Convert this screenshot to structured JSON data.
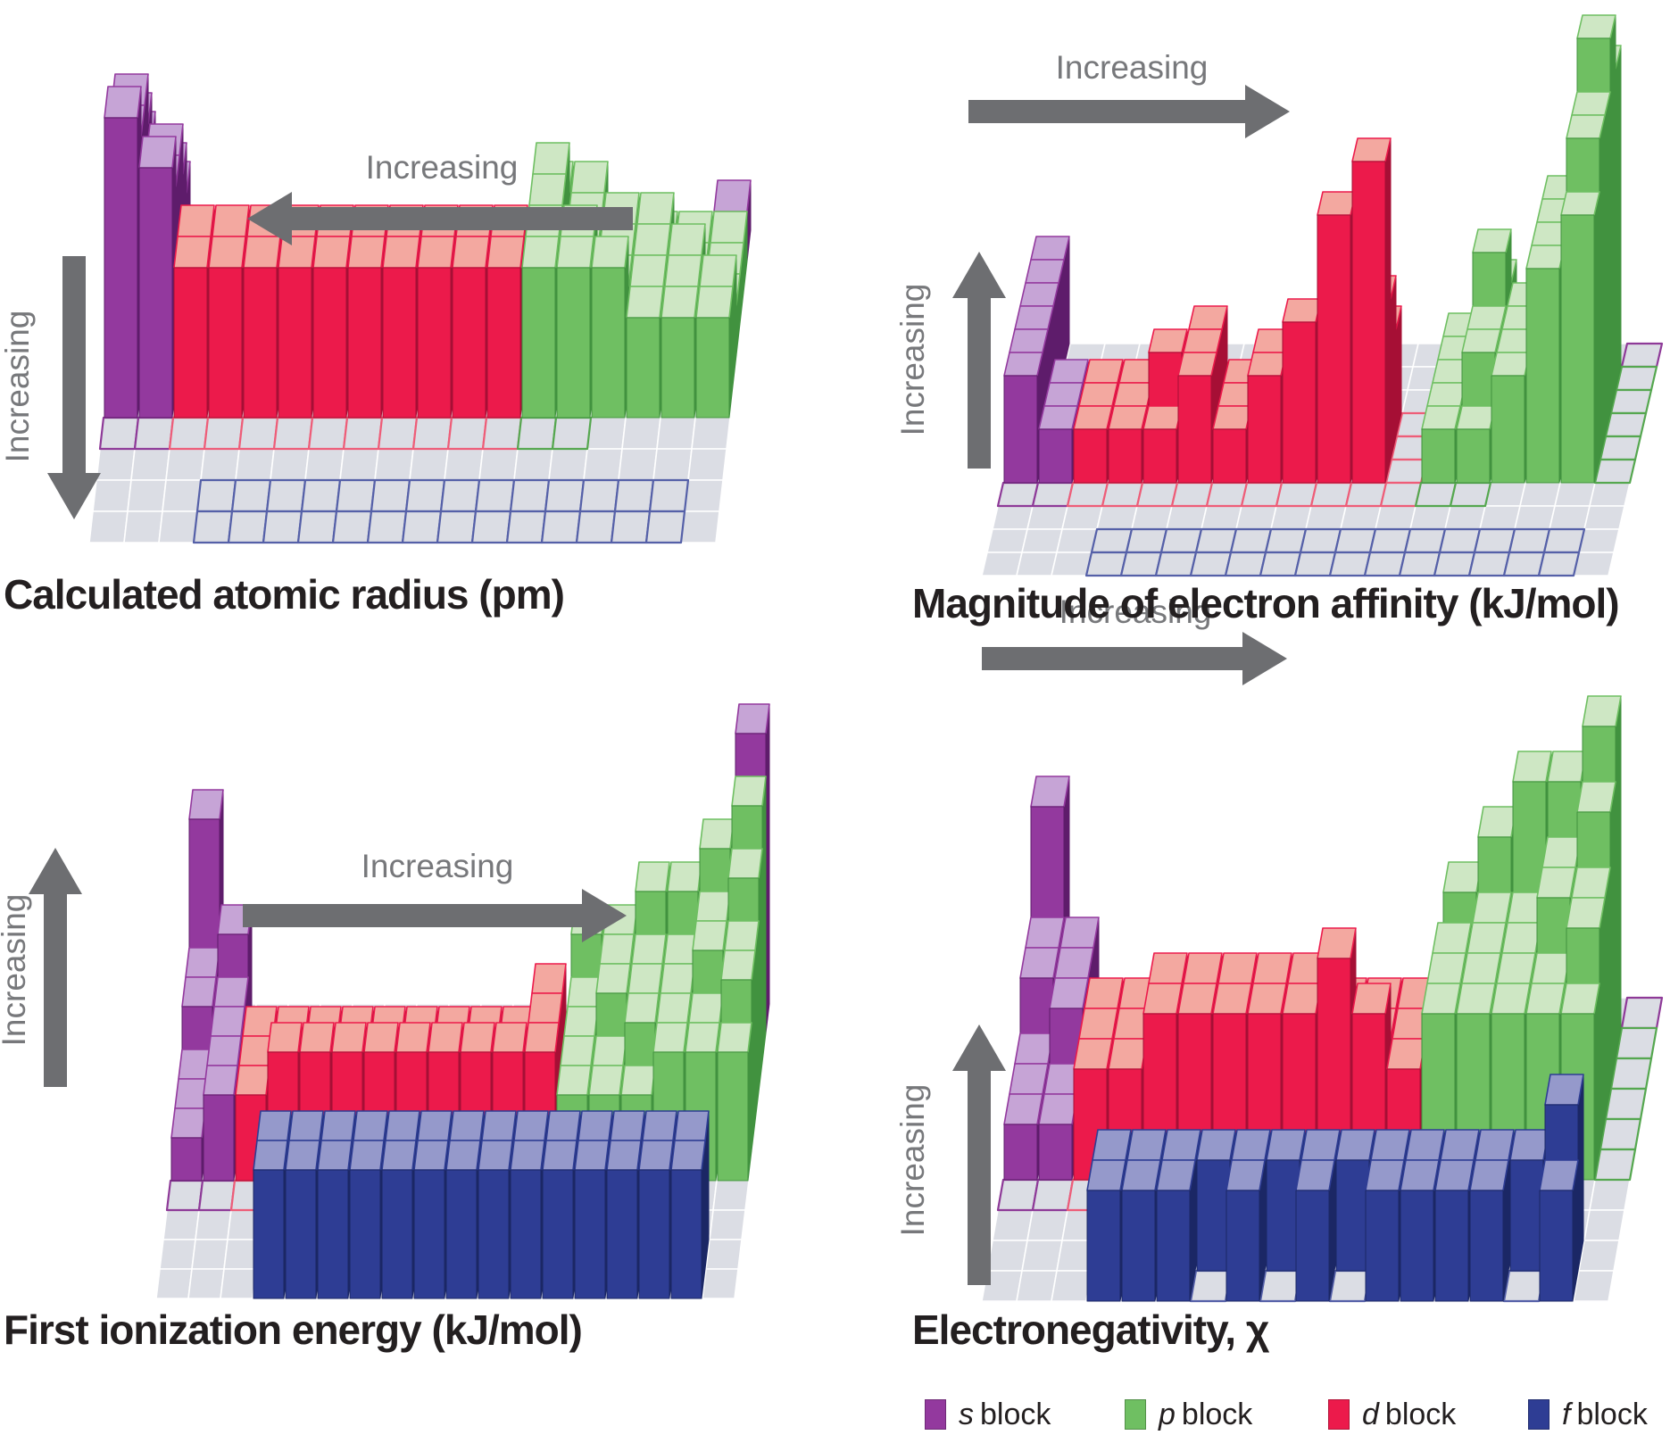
{
  "figure": {
    "background": "#FFFFFF",
    "description": "Summary of four major periodic trends shown as 3D bar charts over a periodic-table base grid"
  },
  "colors": {
    "s": {
      "face": "#93399E",
      "top": "#C6A4D6",
      "side": "#5E1C6B",
      "outline": "#8E3A98"
    },
    "p": {
      "face": "#6FBF62",
      "top": "#CEE7C4",
      "side": "#41923F",
      "outline": "#55A74F"
    },
    "d": {
      "face": "#EC1A4B",
      "top": "#F3A8A0",
      "side": "#A60F35",
      "outline": "#EE5D78"
    },
    "f": {
      "face": "#2E3D94",
      "top": "#9599CB",
      "side": "#1B2765",
      "outline": "#5560A8"
    },
    "grid_cell": "#DBDDE4",
    "grid_line": "#FFFFFF",
    "arrow": "#6D6E71",
    "trend_label": "#77787B",
    "title": "#231F20"
  },
  "chart_data": {
    "type": "bar",
    "variant": "3d-periodic-table-trend",
    "height_units": "relative bar height in cube units (qualitative, read from figure; -1 = empty base cell, 0 = element cell outlined with no bar)",
    "panels": [
      {
        "id": "atomic-radius",
        "title": "Calculated atomic radius (pm)",
        "trend_arrows": {
          "horizontal": {
            "label": "Increasing",
            "direction": "left"
          },
          "vertical": {
            "label": "Increasing",
            "direction": "down"
          }
        },
        "periods": [
          [
            2,
            -1,
            -1,
            -1,
            -1,
            -1,
            -1,
            -1,
            -1,
            -1,
            -1,
            -1,
            -1,
            -1,
            -1,
            -1,
            -1,
            1
          ],
          [
            3,
            2,
            -1,
            -1,
            -1,
            -1,
            -1,
            -1,
            -1,
            -1,
            -1,
            -1,
            2,
            2,
            1,
            1,
            1,
            1
          ],
          [
            4,
            3,
            -1,
            -1,
            -1,
            -1,
            -1,
            -1,
            -1,
            -1,
            -1,
            -1,
            3,
            2,
            2,
            2,
            1,
            1
          ],
          [
            5,
            4,
            2,
            2,
            2,
            2,
            2,
            2,
            2,
            2,
            2,
            2,
            3,
            2,
            2,
            2,
            2,
            1
          ],
          [
            5,
            4,
            3,
            3,
            3,
            3,
            3,
            3,
            3,
            3,
            3,
            3,
            3,
            3,
            2,
            2,
            2,
            2
          ],
          [
            6,
            5,
            3,
            3,
            3,
            3,
            3,
            3,
            3,
            3,
            3,
            3,
            3,
            3,
            3,
            2,
            2,
            2
          ],
          [
            0,
            0,
            0,
            0,
            0,
            0,
            0,
            0,
            0,
            0,
            0,
            0,
            0,
            0,
            -1,
            -1,
            -1,
            -1
          ]
        ],
        "f_block_rows": [
          [
            0,
            0,
            0,
            0,
            0,
            0,
            0,
            0,
            0,
            0,
            0,
            0,
            0,
            0
          ],
          [
            0,
            0,
            0,
            0,
            0,
            0,
            0,
            0,
            0,
            0,
            0,
            0,
            0,
            0
          ]
        ]
      },
      {
        "id": "electron-affinity",
        "title": "Magnitude of electron affinity (kJ/mol)",
        "trend_arrows": {
          "horizontal": {
            "label": "Increasing",
            "direction": "right"
          },
          "vertical": {
            "label": "Increasing",
            "direction": "up"
          }
        },
        "periods": [
          [
            2,
            -1,
            -1,
            -1,
            -1,
            -1,
            -1,
            -1,
            -1,
            -1,
            -1,
            -1,
            -1,
            -1,
            -1,
            -1,
            -1,
            0
          ],
          [
            2,
            0,
            -1,
            -1,
            -1,
            -1,
            -1,
            -1,
            -1,
            -1,
            -1,
            -1,
            1,
            2,
            0,
            3,
            6,
            0
          ],
          [
            2,
            0,
            -1,
            -1,
            -1,
            -1,
            -1,
            -1,
            -1,
            -1,
            -1,
            -1,
            1,
            3,
            2,
            4,
            7,
            0
          ],
          [
            2,
            1,
            1,
            1,
            1,
            2,
            1,
            1,
            2,
            2,
            2,
            0,
            1,
            2,
            2,
            4,
            6,
            0
          ],
          [
            2,
            1,
            1,
            1,
            2,
            2,
            1,
            2,
            2,
            2,
            3,
            0,
            1,
            2,
            2,
            4,
            6,
            0
          ],
          [
            2,
            1,
            1,
            1,
            1,
            2,
            1,
            2,
            3,
            5,
            6,
            0,
            1,
            1,
            2,
            4,
            5,
            0
          ],
          [
            0,
            0,
            0,
            0,
            0,
            0,
            0,
            0,
            0,
            0,
            0,
            0,
            0,
            0,
            -1,
            -1,
            -1,
            -1
          ]
        ],
        "f_block_rows": [
          [
            0,
            0,
            0,
            0,
            0,
            0,
            0,
            0,
            0,
            0,
            0,
            0,
            0,
            0
          ],
          [
            0,
            0,
            0,
            0,
            0,
            0,
            0,
            0,
            0,
            0,
            0,
            0,
            0,
            0
          ]
        ]
      },
      {
        "id": "ionization-energy",
        "title": "First ionization energy (kJ/mol)",
        "trend_arrows": {
          "horizontal": {
            "label": "Increasing",
            "direction": "right"
          },
          "vertical": {
            "label": "Increasing",
            "direction": "up"
          }
        },
        "periods": [
          [
            5,
            -1,
            -1,
            -1,
            -1,
            -1,
            -1,
            -1,
            -1,
            -1,
            -1,
            -1,
            -1,
            -1,
            -1,
            -1,
            -1,
            7
          ],
          [
            2,
            3,
            -1,
            -1,
            -1,
            -1,
            -1,
            -1,
            -1,
            -1,
            -1,
            -1,
            3,
            3,
            4,
            4,
            5,
            6
          ],
          [
            2,
            2,
            -1,
            -1,
            -1,
            -1,
            -1,
            -1,
            -1,
            -1,
            -1,
            -1,
            2,
            3,
            3,
            3,
            4,
            5
          ],
          [
            1,
            2,
            2,
            2,
            2,
            2,
            2,
            2,
            2,
            2,
            2,
            3,
            2,
            3,
            3,
            3,
            4,
            4
          ],
          [
            1,
            2,
            2,
            2,
            2,
            2,
            2,
            2,
            2,
            2,
            2,
            3,
            2,
            2,
            3,
            3,
            3,
            4
          ],
          [
            1,
            2,
            2,
            3,
            3,
            3,
            3,
            3,
            3,
            3,
            3,
            3,
            2,
            2,
            2,
            3,
            3,
            3
          ],
          [
            0,
            0,
            0,
            0,
            0,
            0,
            0,
            0,
            0,
            0,
            0,
            0,
            0,
            0,
            -1,
            -1,
            -1,
            -1
          ]
        ],
        "f_block_rows": [
          [
            3,
            3,
            3,
            3,
            3,
            3,
            3,
            3,
            3,
            3,
            3,
            3,
            3,
            3
          ],
          [
            3,
            3,
            3,
            3,
            3,
            3,
            3,
            3,
            3,
            3,
            3,
            3,
            3,
            3
          ]
        ]
      },
      {
        "id": "electronegativity",
        "title": "Electronegativity, χ",
        "trend_arrows": {
          "horizontal": {
            "label": "Increasing",
            "direction": "right"
          },
          "vertical": {
            "label": "Increasing",
            "direction": "up"
          }
        },
        "periods": [
          [
            4,
            -1,
            -1,
            -1,
            -1,
            -1,
            -1,
            -1,
            -1,
            -1,
            -1,
            -1,
            -1,
            -1,
            -1,
            -1,
            -1,
            0
          ],
          [
            2,
            2,
            -1,
            -1,
            -1,
            -1,
            -1,
            -1,
            -1,
            -1,
            -1,
            -1,
            3,
            4,
            5,
            5,
            6,
            0
          ],
          [
            2,
            2,
            -1,
            -1,
            -1,
            -1,
            -1,
            -1,
            -1,
            -1,
            -1,
            -1,
            2,
            3,
            3,
            4,
            5,
            0
          ],
          [
            1,
            2,
            2,
            2,
            2,
            2,
            2,
            2,
            2,
            2,
            2,
            2,
            3,
            3,
            3,
            4,
            4,
            0
          ],
          [
            1,
            1,
            2,
            2,
            3,
            3,
            3,
            3,
            3,
            2,
            2,
            2,
            3,
            3,
            3,
            3,
            4,
            0
          ],
          [
            1,
            1,
            2,
            2,
            3,
            3,
            3,
            3,
            3,
            4,
            3,
            2,
            3,
            3,
            3,
            3,
            3,
            0
          ],
          [
            0,
            0,
            0,
            0,
            0,
            0,
            0,
            0,
            0,
            0,
            0,
            0,
            0,
            0,
            -1,
            -1,
            -1,
            -1
          ]
        ],
        "f_block_rows": [
          [
            2,
            2,
            2,
            2,
            2,
            2,
            2,
            2,
            2,
            2,
            2,
            2,
            2,
            3
          ],
          [
            2,
            2,
            2,
            0,
            2,
            0,
            2,
            0,
            2,
            2,
            2,
            2,
            0,
            2
          ]
        ]
      }
    ],
    "legend": {
      "items": [
        {
          "symbol": "s",
          "word": "block",
          "block": "s"
        },
        {
          "symbol": "p",
          "word": "block",
          "block": "p"
        },
        {
          "symbol": "d",
          "word": "block",
          "block": "d"
        },
        {
          "symbol": "f",
          "word": "block",
          "block": "f"
        }
      ]
    }
  }
}
